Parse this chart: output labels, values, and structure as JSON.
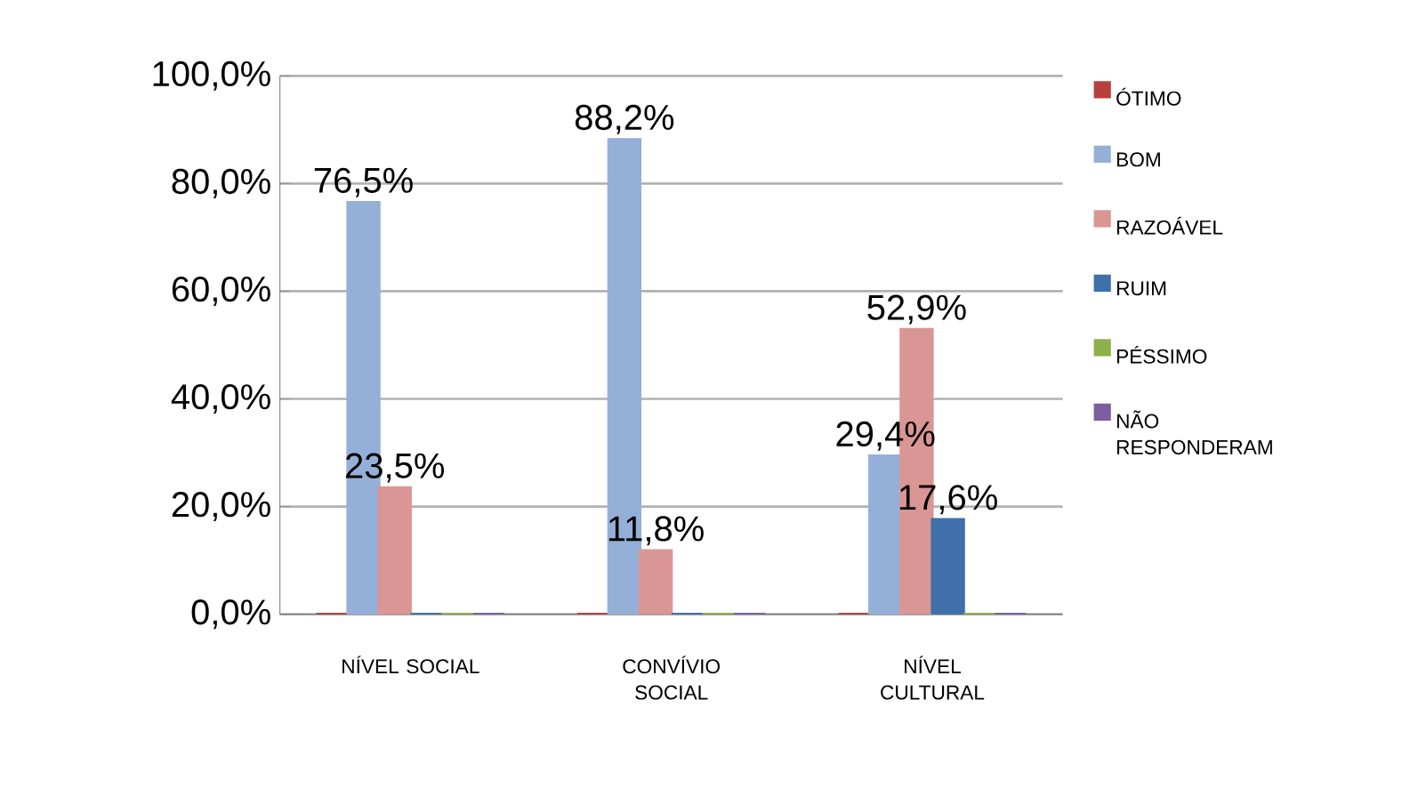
{
  "chart_data": {
    "type": "bar",
    "categories": [
      "NÍVEL SOCIAL",
      "CONVÍVIO SOCIAL",
      "NÍVEL CULTURAL"
    ],
    "series": [
      {
        "name": "ÓTIMO",
        "color": "#b7403c",
        "values": [
          0,
          0,
          0
        ],
        "value_labels": [
          null,
          null,
          null
        ]
      },
      {
        "name": "BOM",
        "color": "#95b0d8",
        "values": [
          76.5,
          88.2,
          29.4
        ],
        "value_labels": [
          "76,5%",
          "88,2%",
          "29,4%"
        ]
      },
      {
        "name": "RAZOÁVEL",
        "color": "#d99694",
        "values": [
          23.5,
          11.8,
          52.9
        ],
        "value_labels": [
          "23,5%",
          "11,8%",
          "52,9%"
        ]
      },
      {
        "name": "RUIM",
        "color": "#3f70aa",
        "values": [
          0,
          0,
          17.6
        ],
        "value_labels": [
          null,
          null,
          "17,6%"
        ]
      },
      {
        "name": "PÉSSIMO",
        "color": "#8fb04a",
        "values": [
          0,
          0,
          0
        ],
        "value_labels": [
          null,
          null,
          null
        ]
      },
      {
        "name": "NÃO RESPONDERAM",
        "color": "#7b5fa0",
        "values": [
          0,
          0,
          0
        ],
        "value_labels": [
          null,
          null,
          null
        ]
      }
    ],
    "ylim": [
      0,
      100
    ],
    "yticks": [
      {
        "value": 0,
        "label": "0,0%"
      },
      {
        "value": 20,
        "label": "20,0%"
      },
      {
        "value": 40,
        "label": "40,0%"
      },
      {
        "value": 60,
        "label": "60,0%"
      },
      {
        "value": 80,
        "label": "80,0%"
      },
      {
        "value": 100,
        "label": "100,0%"
      }
    ],
    "grid": "y",
    "legend": "right"
  }
}
